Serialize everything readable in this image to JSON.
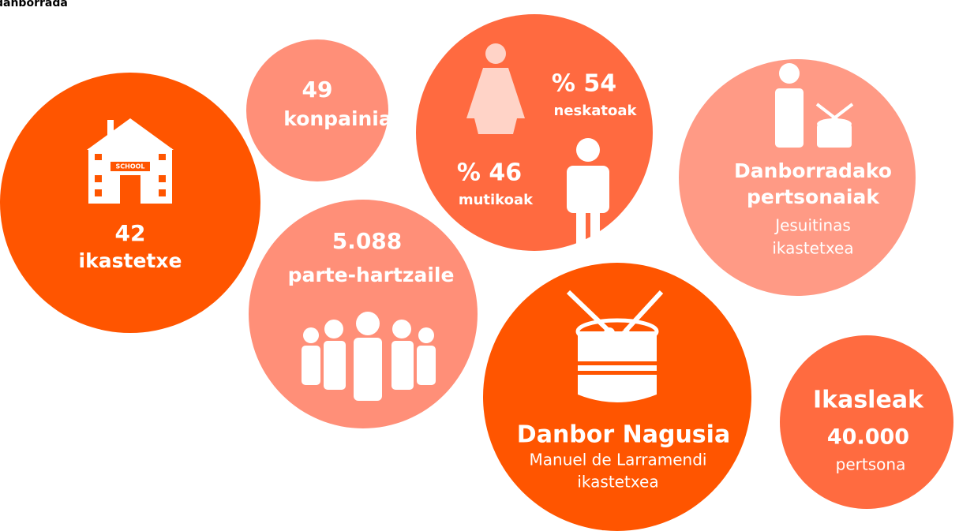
{
  "header": {
    "title": "danborrada"
  },
  "bubbles": [
    {
      "lines": [
        "42",
        "ikastetxe"
      ]
    },
    {
      "lines": [
        "49",
        "konpainia"
      ]
    },
    {
      "lines": [
        "% 54",
        "neskatoak",
        "% 46",
        "mutikoak"
      ]
    },
    {
      "lines": [
        "Danborradako",
        "pertsonaiak",
        "Jesuitinas",
        "ikastetxea"
      ]
    },
    {
      "lines": [
        "5.088",
        "parte-hartzaile"
      ]
    },
    {
      "lines": [
        "Danbor Nagusia",
        "Manuel de Larramendi",
        "ikastetxea"
      ]
    },
    {
      "lines": [
        "Ikasleak",
        "40.000",
        "pertsona"
      ]
    }
  ],
  "icons": {
    "school_sign": "SCHOOL"
  }
}
